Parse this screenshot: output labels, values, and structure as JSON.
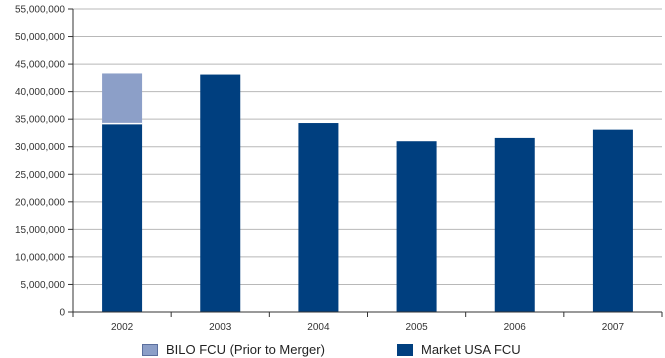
{
  "chart_data": {
    "type": "bar",
    "stacked": true,
    "categories": [
      "2002",
      "2003",
      "2004",
      "2005",
      "2006",
      "2007"
    ],
    "series": [
      {
        "name": "Market USA FCU",
        "color": "#003f7f",
        "values": [
          34200000,
          43100000,
          34300000,
          31000000,
          31600000,
          33100000
        ]
      },
      {
        "name": "BILO FCU (Prior to Merger)",
        "color": "#8c9fc8",
        "values": [
          9100000,
          0,
          0,
          0,
          0,
          0
        ]
      }
    ],
    "ylim": [
      0,
      55000000
    ],
    "yticks": [
      "0",
      "5,000,000",
      "10,000,000",
      "15,000,000",
      "20,000,000",
      "25,000,000",
      "30,000,000",
      "35,000,000",
      "40,000,000",
      "45,000,000",
      "50,000,000",
      "55,000,000"
    ],
    "grid": true,
    "legend_position": "bottom"
  },
  "legend": {
    "items": [
      {
        "label": "BILO FCU (Prior to Merger)",
        "color": "#8c9fc8"
      },
      {
        "label": "Market USA FCU",
        "color": "#003f7f"
      }
    ]
  }
}
